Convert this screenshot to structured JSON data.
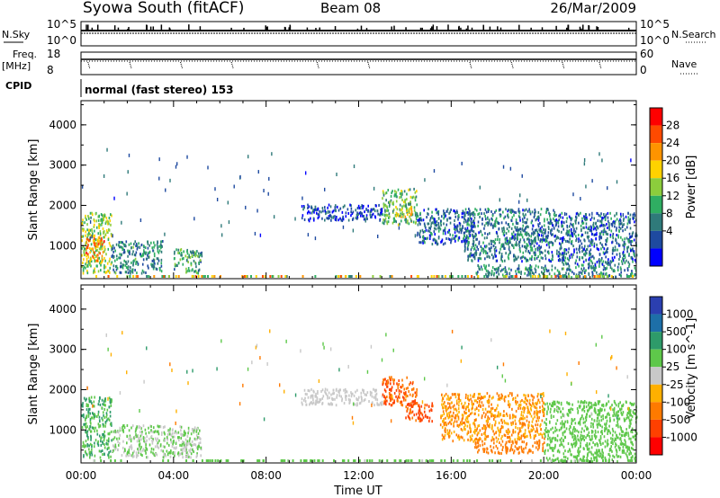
{
  "header": {
    "title": "Syowa South (fitACF)",
    "beam": "Beam 08",
    "date": "26/Mar/2009"
  },
  "noise_panel": {
    "left_label": "N.Sky",
    "left_ticks": [
      "10^5",
      "10^0"
    ],
    "right_label": "N.Search",
    "right_ticks": [
      "10^5",
      "10^0"
    ]
  },
  "freq_panel": {
    "left_label_line1": "Freq.",
    "left_label_line2": "[MHz]",
    "left_ticks": [
      "18",
      "8"
    ],
    "right_label": "Nave",
    "right_ticks": [
      "60",
      "0"
    ]
  },
  "cpid": {
    "label": "CPID",
    "text": "normal (fast stereo) 153"
  },
  "x_axis": {
    "label": "Time UT",
    "ticks": [
      "00:00",
      "04:00",
      "08:00",
      "12:00",
      "16:00",
      "20:00",
      "00:00"
    ]
  },
  "power_panel": {
    "ylabel": "Slant Range [km]",
    "yticks": [
      "4000",
      "3000",
      "2000",
      "1000"
    ],
    "colorbar_label": "Power [dB]",
    "colorbar_ticks": [
      "28",
      "24",
      "20",
      "16",
      "12",
      "8",
      "4"
    ],
    "colors": [
      "#ff0000",
      "#ff4a00",
      "#ff9400",
      "#ffd200",
      "#8ccd3c",
      "#2fae62",
      "#2f7a7a",
      "#1e4aa0",
      "#0000ff"
    ]
  },
  "velocity_panel": {
    "ylabel": "Slant Range [km]",
    "yticks": [
      "4000",
      "3000",
      "2000",
      "1000"
    ],
    "colorbar_label": "Velocity [m s^-1]",
    "colorbar_ticks": [
      "1000",
      "500",
      "100",
      "25",
      "-25",
      "-100",
      "-500",
      "-1000"
    ],
    "colors": [
      "#2b3fb0",
      "#1d6fa8",
      "#2e9b6a",
      "#5ec84a",
      "#c8c8c8",
      "#ffb000",
      "#ff7a00",
      "#ff4000",
      "#ff0000"
    ]
  },
  "chart_data": {
    "type": "heatmap",
    "x_range": [
      "00:00",
      "24:00"
    ],
    "y_range_km": [
      180,
      4600
    ],
    "series": [
      {
        "name": "Power [dB]",
        "regions": [
          {
            "t_start_h": 0.0,
            "t_end_h": 1.3,
            "r_low_km": 300,
            "r_high_km": 1800,
            "value": 16
          },
          {
            "t_start_h": 0.2,
            "t_end_h": 1.0,
            "r_low_km": 600,
            "r_high_km": 1200,
            "value": 24
          },
          {
            "t_start_h": 1.3,
            "t_end_h": 3.5,
            "r_low_km": 300,
            "r_high_km": 1100,
            "value": 10
          },
          {
            "t_start_h": 4.0,
            "t_end_h": 5.2,
            "r_low_km": 300,
            "r_high_km": 900,
            "value": 12
          },
          {
            "t_start_h": 9.5,
            "t_end_h": 13.0,
            "r_low_km": 1600,
            "r_high_km": 2000,
            "value": 6
          },
          {
            "t_start_h": 13.0,
            "t_end_h": 14.5,
            "r_low_km": 1500,
            "r_high_km": 2400,
            "value": 14
          },
          {
            "t_start_h": 13.5,
            "t_end_h": 14.3,
            "r_low_km": 1700,
            "r_high_km": 1900,
            "value": 20
          },
          {
            "t_start_h": 14.5,
            "t_end_h": 17.0,
            "r_low_km": 1000,
            "r_high_km": 1900,
            "value": 8
          },
          {
            "t_start_h": 16.5,
            "t_end_h": 20.5,
            "r_low_km": 600,
            "r_high_km": 1900,
            "value": 9
          },
          {
            "t_start_h": 17.0,
            "t_end_h": 24.0,
            "r_low_km": 200,
            "r_high_km": 500,
            "value": 10
          },
          {
            "t_start_h": 20.5,
            "t_end_h": 24.0,
            "r_low_km": 500,
            "r_high_km": 1800,
            "value": 8
          }
        ]
      },
      {
        "name": "Velocity [m s^-1]",
        "regions": [
          {
            "t_start_h": 0.0,
            "t_end_h": 1.3,
            "r_low_km": 300,
            "r_high_km": 1800,
            "value": 100
          },
          {
            "t_start_h": 1.3,
            "t_end_h": 5.2,
            "r_low_km": 300,
            "r_high_km": 1100,
            "value": 25
          },
          {
            "t_start_h": 9.5,
            "t_end_h": 13.0,
            "r_low_km": 1600,
            "r_high_km": 2000,
            "value": 0
          },
          {
            "t_start_h": 13.0,
            "t_end_h": 14.5,
            "r_low_km": 1600,
            "r_high_km": 2300,
            "value": -500
          },
          {
            "t_start_h": 14.0,
            "t_end_h": 15.2,
            "r_low_km": 1200,
            "r_high_km": 1700,
            "value": -600
          },
          {
            "t_start_h": 15.5,
            "t_end_h": 20.0,
            "r_low_km": 700,
            "r_high_km": 1900,
            "value": -100
          },
          {
            "t_start_h": 17.0,
            "t_end_h": 20.0,
            "r_low_km": 400,
            "r_high_km": 700,
            "value": -300
          },
          {
            "t_start_h": 20.0,
            "t_end_h": 24.0,
            "r_low_km": 200,
            "r_high_km": 1700,
            "value": 50
          }
        ]
      }
    ]
  }
}
